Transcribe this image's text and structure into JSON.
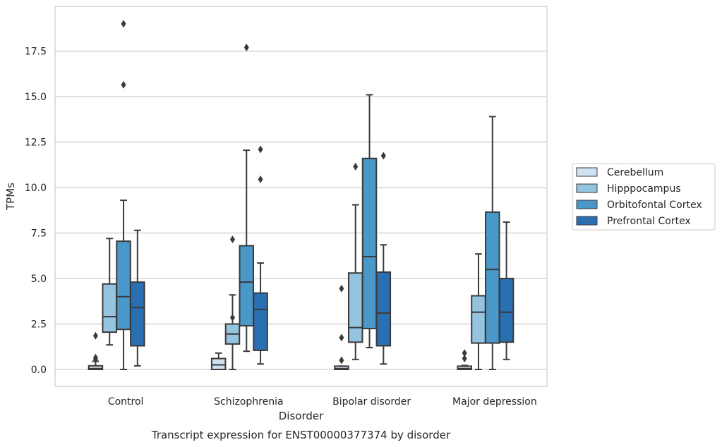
{
  "chart_data": {
    "type": "box",
    "title": "Transcript expression for ENST00000377374 by disorder",
    "xlabel": "Disorder",
    "ylabel": "TPMs",
    "ylim": [
      -0.9,
      19.8
    ],
    "yticks": [
      "0.0",
      "2.5",
      "5.0",
      "7.5",
      "10.0",
      "12.5",
      "15.0",
      "17.5"
    ],
    "grid": "horizontal",
    "legend_position": "right",
    "categories": [
      "Control",
      "Schizophrenia",
      "Bipolar disorder",
      "Major depression"
    ],
    "series": [
      {
        "name": "Cerebellum",
        "color": "#d0e1f2",
        "boxes": [
          {
            "whisker_low": 0.0,
            "q1": 0.0,
            "median": 0.05,
            "q3": 0.2,
            "whisker_high": 0.45,
            "outliers": [
              0.55,
              0.65,
              1.85
            ]
          },
          {
            "whisker_low": 0.0,
            "q1": 0.0,
            "median": 0.25,
            "q3": 0.6,
            "whisker_high": 0.9,
            "outliers": []
          },
          {
            "whisker_low": 0.0,
            "q1": 0.0,
            "median": 0.05,
            "q3": 0.18,
            "whisker_high": 0.18,
            "outliers": [
              0.5,
              1.75,
              4.45
            ]
          },
          {
            "whisker_low": 0.0,
            "q1": 0.0,
            "median": 0.05,
            "q3": 0.18,
            "whisker_high": 0.22,
            "outliers": [
              0.6,
              0.9
            ]
          }
        ]
      },
      {
        "name": "Hipppocampus",
        "color": "#94c4df",
        "boxes": [
          {
            "whisker_low": 1.35,
            "q1": 2.05,
            "median": 2.9,
            "q3": 4.7,
            "whisker_high": 7.2,
            "outliers": []
          },
          {
            "whisker_low": 0.0,
            "q1": 1.4,
            "median": 1.95,
            "q3": 2.5,
            "whisker_high": 4.1,
            "outliers": [
              2.85,
              7.15
            ]
          },
          {
            "whisker_low": 0.55,
            "q1": 1.5,
            "median": 2.3,
            "q3": 5.3,
            "whisker_high": 9.05,
            "outliers": [
              11.15
            ]
          },
          {
            "whisker_low": 0.0,
            "q1": 1.45,
            "median": 3.15,
            "q3": 4.05,
            "whisker_high": 6.35,
            "outliers": []
          }
        ]
      },
      {
        "name": "Orbitofontal Cortex",
        "color": "#4a98c9",
        "boxes": [
          {
            "whisker_low": 0.0,
            "q1": 2.2,
            "median": 4.0,
            "q3": 7.05,
            "whisker_high": 9.3,
            "outliers": [
              15.65,
              19.0
            ]
          },
          {
            "whisker_low": 1.0,
            "q1": 2.4,
            "median": 4.8,
            "q3": 6.8,
            "whisker_high": 12.05,
            "outliers": [
              17.7
            ]
          },
          {
            "whisker_low": 1.2,
            "q1": 2.25,
            "median": 6.2,
            "q3": 11.6,
            "whisker_high": 15.1,
            "outliers": []
          },
          {
            "whisker_low": 0.0,
            "q1": 1.45,
            "median": 5.5,
            "q3": 8.65,
            "whisker_high": 13.9,
            "outliers": []
          }
        ]
      },
      {
        "name": "Prefrontal Cortex",
        "color": "#2b6fb3",
        "boxes": [
          {
            "whisker_low": 0.2,
            "q1": 1.3,
            "median": 3.4,
            "q3": 4.8,
            "whisker_high": 7.65,
            "outliers": []
          },
          {
            "whisker_low": 0.3,
            "q1": 1.05,
            "median": 3.3,
            "q3": 4.2,
            "whisker_high": 5.85,
            "outliers": [
              10.45,
              12.1
            ]
          },
          {
            "whisker_low": 0.3,
            "q1": 1.3,
            "median": 3.1,
            "q3": 5.35,
            "whisker_high": 6.85,
            "outliers": [
              11.75
            ]
          },
          {
            "whisker_low": 0.55,
            "q1": 1.5,
            "median": 3.15,
            "q3": 5.0,
            "whisker_high": 8.1,
            "outliers": []
          }
        ]
      }
    ]
  }
}
